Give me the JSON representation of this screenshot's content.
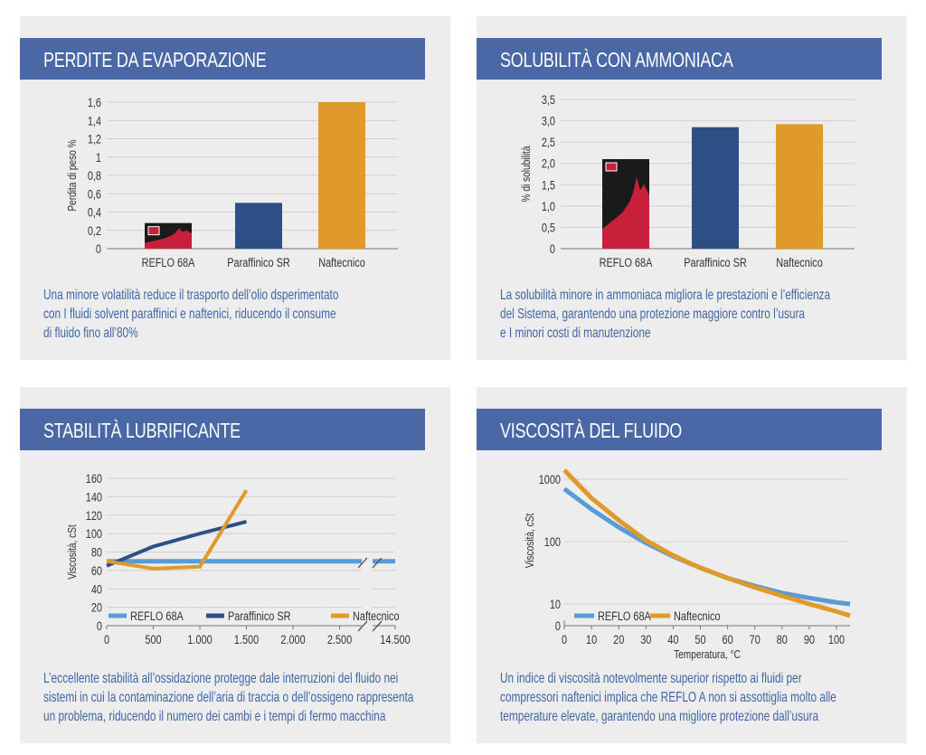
{
  "colors": {
    "reflo": "#c8203a",
    "paraffinico": "#2e4f86",
    "naftecnico": "#e09a2a",
    "reflo_line": "#5b9bd5",
    "header": "#4a68a6",
    "text": "#3f66a6"
  },
  "panels": [
    {
      "title": "PERDITE DA EVAPORAZIONE",
      "desc": [
        "Una minore volatilità reduce il trasporto dell’olio dsperimentato",
        "con I fluidi solvent paraffinici e naftenici, riducendo il consume",
        "di fluido fino all’80%"
      ]
    },
    {
      "title": "SOLUBILITÀ CON AMMONIACA",
      "desc": [
        "La solubilità minore in ammoniaca migliora le prestazioni e l’efficienza",
        "del Sistema, garantendo una protezione maggiore contro l’usura",
        "e I minori costi di manutenzione"
      ]
    },
    {
      "title": "STABILITÀ LUBRIFICANTE",
      "desc": [
        "L’eccellente stabilità all’ossidazione protegge dale interruzioni del fluido nei",
        "sistemi in cui la contaminazione dell’aria di traccia o dell’ossigeno rappresenta",
        "un problema, riducendo il numero dei cambi e i tempi di fermo macchina"
      ]
    },
    {
      "title": "VISCOSITÀ DEL FLUIDO",
      "desc": [
        "Un indice di viscosità notevolmente superior rispetto ai fluidi per",
        "compressori naftenici implica che REFLO A non si assottiglia molto alle",
        "temperature elevate, garantendo una migliore protezione dall’usura"
      ]
    }
  ],
  "chart_data": [
    {
      "type": "bar",
      "title": "PERDITE DA EVAPORAZIONE",
      "ylabel": "Perdita di peso %",
      "categories": [
        "REFLO 68A",
        "Paraffinico SR",
        "Naftecnico"
      ],
      "values": [
        0.28,
        0.5,
        1.6
      ],
      "ylim": [
        0,
        1.6
      ],
      "yticks": [
        "0",
        "0,2",
        "0,4",
        "0,6",
        "0,8",
        "1",
        "1,2",
        "1,4",
        "1,6"
      ],
      "grid": true
    },
    {
      "type": "bar",
      "title": "SOLUBILITÀ CON AMMONIACA",
      "ylabel": "% di solubilità",
      "categories": [
        "REFLO 68A",
        "Paraffinico SR",
        "Naftecnico"
      ],
      "values": [
        2.1,
        2.85,
        2.92
      ],
      "ylim": [
        0,
        3.5
      ],
      "yticks": [
        "0",
        "0,5",
        "1,0",
        "1,5",
        "2,0",
        "2,5",
        "3,0",
        "3,5"
      ],
      "grid": true
    },
    {
      "type": "line",
      "title": "STABILITÀ LUBRIFICANTE",
      "ylabel": "Viscosità, cSt",
      "ylim": [
        0,
        160
      ],
      "yticks": [
        "0",
        "20",
        "40",
        "60",
        "80",
        "100",
        "120",
        "140",
        "160"
      ],
      "xticks": [
        "0",
        "500",
        "1.000",
        "1.500",
        "2.000",
        "2.500",
        "14.500"
      ],
      "legend": "bottom-left",
      "series": [
        {
          "name": "REFLO 68A",
          "x": [
            0,
            14500
          ],
          "y": [
            70,
            70
          ]
        },
        {
          "name": "Paraffinico SR",
          "x": [
            0,
            500,
            1000,
            1500
          ],
          "y": [
            65,
            86,
            100,
            113
          ]
        },
        {
          "name": "Naftecnico",
          "x": [
            0,
            500,
            1000,
            1500
          ],
          "y": [
            70,
            62,
            64,
            147
          ]
        }
      ]
    },
    {
      "type": "line",
      "title": "VISCOSITÀ DEL FLUIDO",
      "ylabel": "Viscosità, cSt",
      "xlabel": "Temperatura, °C",
      "yscale": "log",
      "yticks": [
        "0",
        "10",
        "100",
        "1000"
      ],
      "xticks": [
        "0",
        "10",
        "20",
        "30",
        "40",
        "50",
        "60",
        "70",
        "80",
        "90",
        "100"
      ],
      "xlim": [
        0,
        105
      ],
      "legend": "bottom-left",
      "series": [
        {
          "name": "REFLO 68A",
          "x": [
            0,
            10,
            20,
            30,
            40,
            50,
            60,
            70,
            80,
            90,
            100,
            105
          ],
          "y": [
            700,
            330,
            170,
            95,
            58,
            38,
            26,
            19.5,
            15,
            12.5,
            10.6,
            10
          ]
        },
        {
          "name": "Naftecnico",
          "x": [
            0,
            10,
            20,
            30,
            40,
            50,
            60,
            70,
            80,
            90,
            100,
            105
          ],
          "y": [
            1400,
            500,
            220,
            105,
            60,
            38,
            26,
            18.5,
            13.5,
            10,
            7.6,
            6.5
          ]
        }
      ]
    }
  ]
}
